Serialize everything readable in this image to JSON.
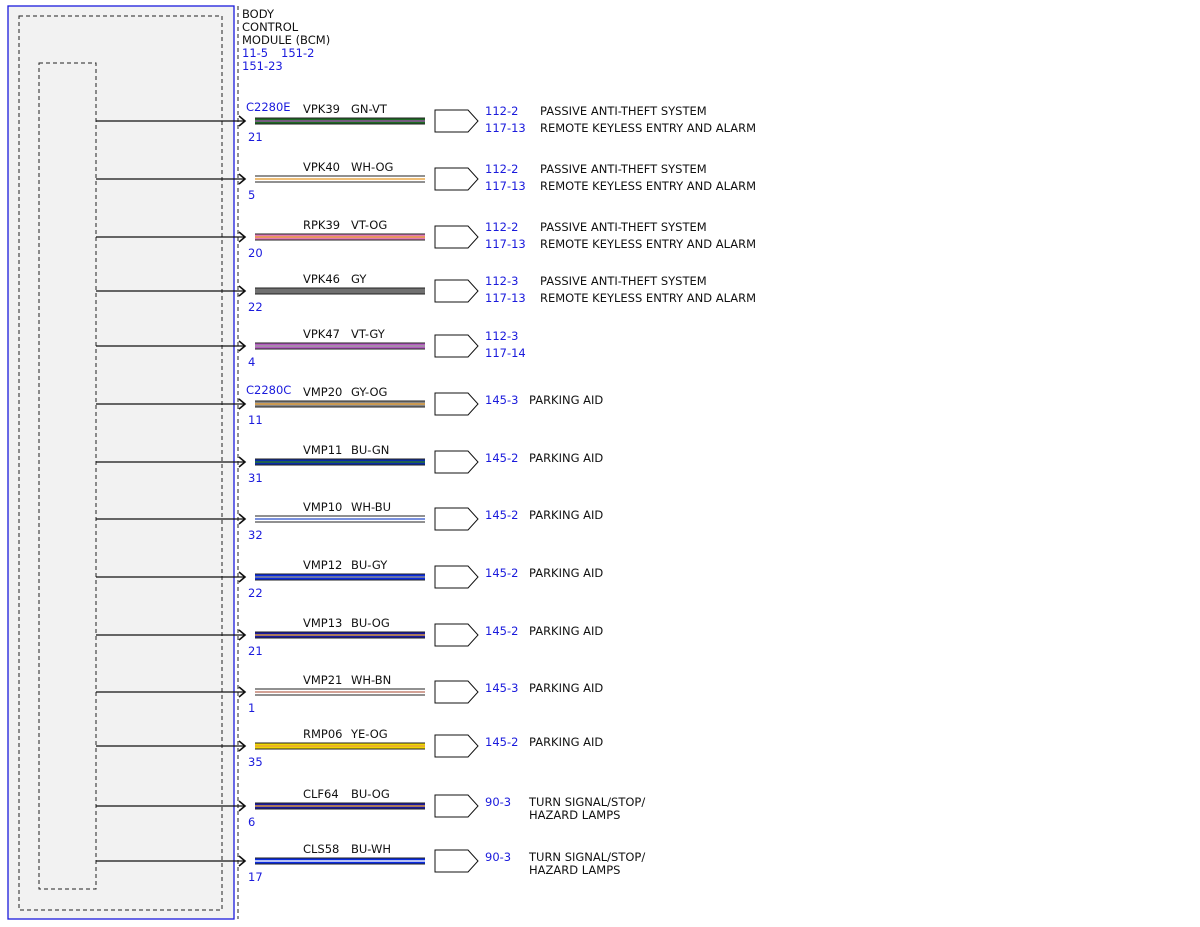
{
  "module": {
    "title_lines": [
      "BODY",
      "CONTROL",
      "MODULE (BCM)"
    ],
    "refs": [
      "11-5",
      "151-2",
      "151-23"
    ]
  },
  "circuits": [
    {
      "connector": "C2280E",
      "pin": "21",
      "circuit": "VPK39",
      "color_code": "GN-VT",
      "wire_colors": [
        "#1e6b24",
        "#9b55a8"
      ],
      "refs": [
        "112-2",
        "117-13"
      ],
      "descriptions": [
        "PASSIVE ANTI-THEFT SYSTEM",
        "REMOTE KEYLESS ENTRY AND ALARM"
      ]
    },
    {
      "connector": "",
      "pin": "5",
      "circuit": "VPK40",
      "color_code": "WH-OG",
      "wire_colors": [
        "#ffffff",
        "#e8a33d"
      ],
      "refs": [
        "112-2",
        "117-13"
      ],
      "descriptions": [
        "PASSIVE ANTI-THEFT SYSTEM",
        "REMOTE KEYLESS ENTRY AND ALARM"
      ]
    },
    {
      "connector": "",
      "pin": "20",
      "circuit": "RPK39",
      "color_code": "VT-OG",
      "wire_colors": [
        "#e07ab4",
        "#e8a33d"
      ],
      "refs": [
        "112-2",
        "117-13"
      ],
      "descriptions": [
        "PASSIVE ANTI-THEFT SYSTEM",
        "REMOTE KEYLESS ENTRY AND ALARM"
      ]
    },
    {
      "connector": "",
      "pin": "22",
      "circuit": "VPK46",
      "color_code": "GY",
      "wire_colors": [
        "#707070",
        "#707070"
      ],
      "refs": [
        "112-3",
        "117-13"
      ],
      "descriptions": [
        "PASSIVE ANTI-THEFT SYSTEM",
        "REMOTE KEYLESS ENTRY AND ALARM"
      ]
    },
    {
      "connector": "",
      "pin": "4",
      "circuit": "VPK47",
      "color_code": "VT-GY",
      "wire_colors": [
        "#b45cc0",
        "#a0a0a0"
      ],
      "refs": [
        "112-3",
        "117-14"
      ],
      "descriptions": []
    },
    {
      "connector": "C2280C",
      "pin": "11",
      "circuit": "VMP20",
      "color_code": "GY-OG",
      "wire_colors": [
        "#888888",
        "#e8a33d"
      ],
      "refs": [
        "145-3"
      ],
      "descriptions": [
        "PARKING AID"
      ]
    },
    {
      "connector": "",
      "pin": "31",
      "circuit": "VMP11",
      "color_code": "BU-GN",
      "wire_colors": [
        "#0a2ca8",
        "#2a7a2a"
      ],
      "refs": [
        "145-2"
      ],
      "descriptions": [
        "PARKING AID"
      ]
    },
    {
      "connector": "",
      "pin": "32",
      "circuit": "VMP10",
      "color_code": "WH-BU",
      "wire_colors": [
        "#ffffff",
        "#4060d0"
      ],
      "refs": [
        "145-2"
      ],
      "descriptions": [
        "PARKING AID"
      ]
    },
    {
      "connector": "",
      "pin": "22",
      "circuit": "VMP12",
      "color_code": "BU-GY",
      "wire_colors": [
        "#0a2ce0",
        "#909090"
      ],
      "refs": [
        "145-2"
      ],
      "descriptions": [
        "PARKING AID"
      ]
    },
    {
      "connector": "",
      "pin": "21",
      "circuit": "VMP13",
      "color_code": "BU-OG",
      "wire_colors": [
        "#1a1aa0",
        "#e8a33d"
      ],
      "refs": [
        "145-2"
      ],
      "descriptions": [
        "PARKING AID"
      ]
    },
    {
      "connector": "",
      "pin": "1",
      "circuit": "VMP21",
      "color_code": "WH-BN",
      "wire_colors": [
        "#ffffff",
        "#c07a6a"
      ],
      "refs": [
        "145-3"
      ],
      "descriptions": [
        "PARKING AID"
      ]
    },
    {
      "connector": "",
      "pin": "35",
      "circuit": "RMP06",
      "color_code": "YE-OG",
      "wire_colors": [
        "#f0d800",
        "#e8a33d"
      ],
      "refs": [
        "145-2"
      ],
      "descriptions": [
        "PARKING AID"
      ]
    },
    {
      "connector": "",
      "pin": "6",
      "circuit": "CLF64",
      "color_code": "BU-OG",
      "wire_colors": [
        "#1a1aa0",
        "#e8a33d"
      ],
      "refs": [
        "90-3"
      ],
      "descriptions": [
        "TURN SIGNAL/STOP/",
        "HAZARD LAMPS"
      ]
    },
    {
      "connector": "",
      "pin": "17",
      "circuit": "CLS58",
      "color_code": "BU-WH",
      "wire_colors": [
        "#0a2ce0",
        "#ffffff"
      ],
      "refs": [
        "90-3"
      ],
      "descriptions": [
        "TURN SIGNAL/STOP/",
        "HAZARD LAMPS"
      ]
    }
  ],
  "colors": {
    "link_blue": "#1a1adc",
    "module_border": "#1a1adc",
    "module_fill": "#f2f2f2"
  }
}
